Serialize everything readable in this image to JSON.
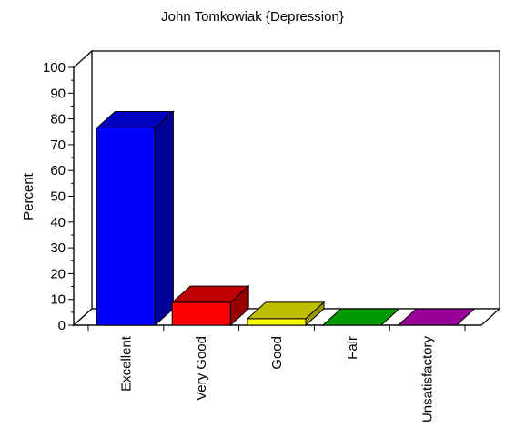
{
  "chart_data": {
    "type": "bar",
    "title": "John Tomkowiak {Depression}",
    "xlabel": "",
    "ylabel": "Percent",
    "ylim": [
      0,
      100
    ],
    "yticks": [
      0,
      10,
      20,
      30,
      40,
      50,
      60,
      70,
      80,
      90,
      100
    ],
    "categories": [
      "Excellent",
      "Very Good",
      "Good",
      "Fair",
      "Unsatisfactory"
    ],
    "values": [
      76.5,
      8.8,
      2.5,
      0,
      0
    ],
    "colors": [
      "#0000ff",
      "#ff0000",
      "#ffff00",
      "#00cc00",
      "#cc00cc"
    ],
    "grid": false,
    "legend": "none"
  }
}
